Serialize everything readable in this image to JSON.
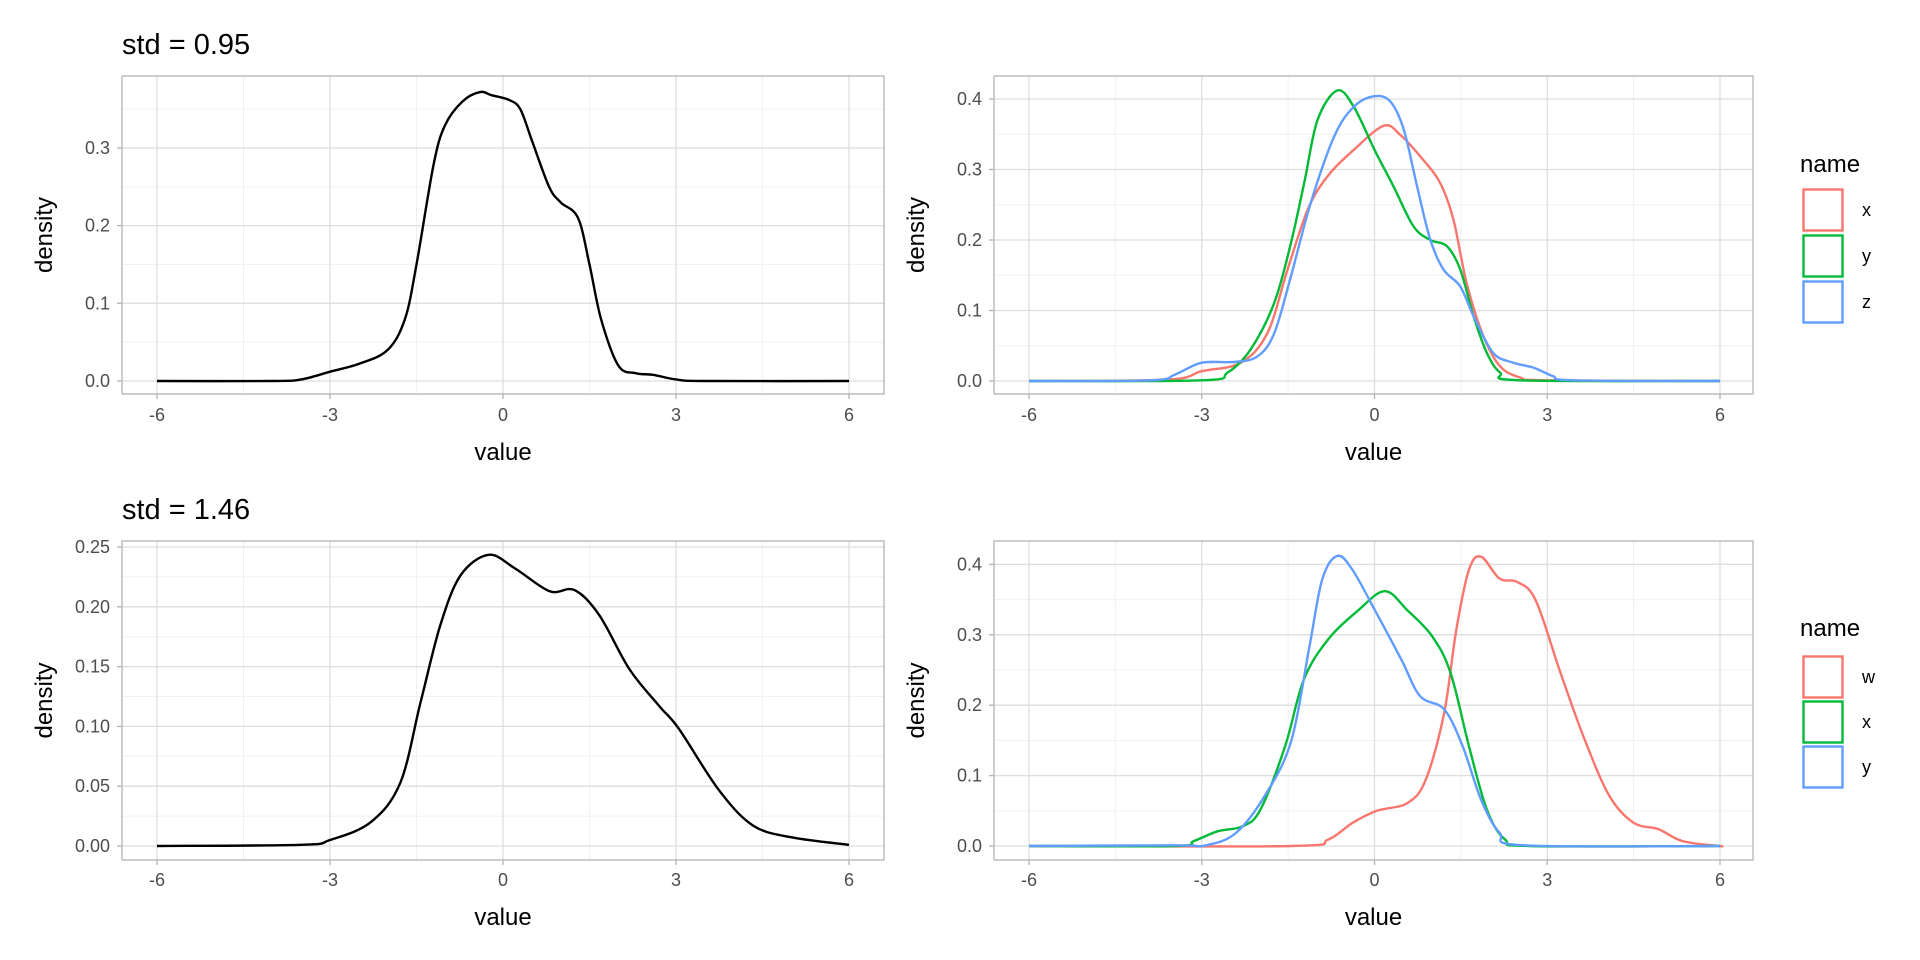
{
  "chart_data": [
    {
      "type": "line",
      "title": "std = 0.95",
      "xlabel": "value",
      "ylabel": "density",
      "xlim": [
        -6,
        6
      ],
      "ylim": [
        0,
        0.372
      ],
      "grid": true,
      "xticks": [
        -6,
        -3,
        0,
        3,
        6
      ],
      "xtick_labels": [
        "-6",
        "-3",
        "0",
        "3",
        "6"
      ],
      "yticks": [
        0,
        0.1,
        0.2,
        0.3
      ],
      "ytick_labels": [
        "0.0",
        "0.1",
        "0.2",
        "0.3"
      ],
      "series": [
        {
          "color": "#000000",
          "x": [
            -6,
            -4,
            -3.5,
            -3,
            -2.5,
            -2,
            -1.7,
            -1.5,
            -1.2,
            -1,
            -0.7,
            -0.4,
            -0.2,
            0.1,
            0.3,
            0.5,
            0.8,
            1.0,
            1.3,
            1.5,
            1.7,
            2,
            2.3,
            2.6,
            3,
            3.5,
            6
          ],
          "y": [
            0,
            0,
            0.002,
            0.012,
            0.022,
            0.04,
            0.08,
            0.15,
            0.28,
            0.33,
            0.36,
            0.372,
            0.368,
            0.362,
            0.35,
            0.31,
            0.25,
            0.23,
            0.21,
            0.15,
            0.08,
            0.02,
            0.01,
            0.008,
            0.002,
            0,
            0
          ]
        }
      ]
    },
    {
      "type": "line",
      "title": "",
      "xlabel": "value",
      "ylabel": "density",
      "xlim": [
        -6,
        6
      ],
      "ylim": [
        0,
        0.412
      ],
      "grid": true,
      "xticks": [
        -6,
        -3,
        0,
        3,
        6
      ],
      "xtick_labels": [
        "-6",
        "-3",
        "0",
        "3",
        "6"
      ],
      "yticks": [
        0,
        0.1,
        0.2,
        0.3,
        0.4
      ],
      "ytick_labels": [
        "0.0",
        "0.1",
        "0.2",
        "0.3",
        "0.4"
      ],
      "legend": {
        "title": "name",
        "placement": "right"
      },
      "series": [
        {
          "name": "x",
          "color": "#F8766D",
          "x": [
            -6,
            -3.59,
            -3,
            -2.32,
            -1.86,
            -1.51,
            -1.16,
            -0.82,
            -0.36,
            0.16,
            0.45,
            0.8,
            1.14,
            1.37,
            1.6,
            1.89,
            2.18,
            2.53,
            2.99,
            6
          ],
          "y": [
            0,
            0.002,
            0.014,
            0.026,
            0.068,
            0.158,
            0.243,
            0.29,
            0.328,
            0.362,
            0.349,
            0.318,
            0.281,
            0.229,
            0.139,
            0.064,
            0.021,
            0.005,
            0.001,
            0
          ]
        },
        {
          "name": "y",
          "color": "#00BA38",
          "x": [
            -6,
            -3,
            -2.55,
            -2.15,
            -1.74,
            -1.45,
            -1.22,
            -0.99,
            -0.65,
            -0.36,
            0,
            0.33,
            0.68,
            0.97,
            1.26,
            1.49,
            1.72,
            1.95,
            2.18,
            2.53,
            6
          ],
          "y": [
            0,
            0.001,
            0.012,
            0.045,
            0.111,
            0.196,
            0.281,
            0.37,
            0.412,
            0.389,
            0.328,
            0.276,
            0.219,
            0.2,
            0.191,
            0.158,
            0.092,
            0.04,
            0.012,
            0.001,
            0
          ]
        },
        {
          "name": "z",
          "color": "#619CFF",
          "x": [
            -6,
            -3.88,
            -3.47,
            -3,
            -2.43,
            -2.03,
            -1.74,
            -1.45,
            -1.11,
            -0.7,
            -0.36,
            0,
            0.28,
            0.51,
            0.74,
            0.97,
            1.2,
            1.49,
            1.72,
            2.06,
            2.41,
            2.76,
            3.1,
            3.45,
            6
          ],
          "y": [
            0,
            0.001,
            0.009,
            0.026,
            0.027,
            0.035,
            0.068,
            0.149,
            0.252,
            0.347,
            0.389,
            0.404,
            0.396,
            0.356,
            0.276,
            0.2,
            0.158,
            0.134,
            0.092,
            0.04,
            0.026,
            0.019,
            0.007,
            0.001,
            0
          ]
        }
      ]
    },
    {
      "type": "line",
      "title": "std = 1.46",
      "xlabel": "value",
      "ylabel": "density",
      "xlim": [
        -6,
        6
      ],
      "ylim": [
        0,
        0.2435
      ],
      "grid": true,
      "xticks": [
        -6,
        -3,
        0,
        3,
        6
      ],
      "xtick_labels": [
        "-6",
        "-3",
        "0",
        "3",
        "6"
      ],
      "yticks": [
        0,
        0.05,
        0.1,
        0.15,
        0.2,
        0.25
      ],
      "ytick_labels": [
        "0.00",
        "0.05",
        "0.10",
        "0.15",
        "0.20",
        "0.25"
      ],
      "series": [
        {
          "color": "#000000",
          "x": [
            -6,
            -3.5,
            -3,
            -2.29,
            -1.78,
            -1.43,
            -1.09,
            -0.74,
            -0.25,
            0.21,
            0.81,
            1.24,
            1.67,
            2.19,
            2.71,
            3.05,
            3.74,
            4.34,
            5.03,
            6
          ],
          "y": [
            0,
            0.001,
            0.005,
            0.02,
            0.053,
            0.12,
            0.184,
            0.226,
            0.2435,
            0.232,
            0.213,
            0.214,
            0.193,
            0.148,
            0.117,
            0.098,
            0.047,
            0.017,
            0.007,
            0.001
          ]
        }
      ]
    },
    {
      "type": "line",
      "title": "",
      "xlabel": "value",
      "ylabel": "density",
      "xlim": [
        -6,
        6
      ],
      "ylim": [
        0,
        0.412
      ],
      "grid": true,
      "xticks": [
        -6,
        -3,
        0,
        3,
        6
      ],
      "xtick_labels": [
        "-6",
        "-3",
        "0",
        "3",
        "6"
      ],
      "yticks": [
        0,
        0.1,
        0.2,
        0.3,
        0.4
      ],
      "ytick_labels": [
        "0.0",
        "0.1",
        "0.2",
        "0.3",
        "0.4"
      ],
      "legend": {
        "title": "name",
        "placement": "right"
      },
      "series": [
        {
          "name": "w",
          "color": "#F8766D",
          "x": [
            -6,
            -1.44,
            -0.81,
            -0.38,
            0.04,
            0.57,
            0.89,
            1.21,
            1.42,
            1.64,
            1.85,
            2.17,
            2.48,
            2.8,
            3.23,
            3.65,
            4.08,
            4.5,
            4.93,
            5.35,
            5.99,
            6
          ],
          "y": [
            0,
            0,
            0.009,
            0.033,
            0.05,
            0.061,
            0.094,
            0.189,
            0.307,
            0.392,
            0.411,
            0.38,
            0.375,
            0.349,
            0.246,
            0.151,
            0.071,
            0.033,
            0.024,
            0.007,
            0,
            0
          ]
        },
        {
          "name": "x",
          "color": "#00BA38",
          "x": [
            -6,
            -3.46,
            -3.14,
            -2.72,
            -2.29,
            -1.98,
            -1.55,
            -1.23,
            -0.81,
            -0.28,
            0.18,
            0.57,
            1.0,
            1.32,
            1.64,
            1.95,
            2.27,
            2.7,
            6
          ],
          "y": [
            0,
            0,
            0.007,
            0.021,
            0.028,
            0.052,
            0.142,
            0.236,
            0.293,
            0.335,
            0.362,
            0.335,
            0.298,
            0.246,
            0.142,
            0.052,
            0.009,
            0,
            0
          ]
        },
        {
          "name": "y",
          "color": "#619CFF",
          "x": [
            -6,
            -3.46,
            -2.93,
            -2.4,
            -1.87,
            -1.44,
            -1.13,
            -0.91,
            -0.65,
            -0.38,
            0.04,
            0.47,
            0.79,
            1.21,
            1.53,
            1.85,
            2.17,
            2.59,
            6
          ],
          "y": [
            0,
            0.001,
            0.001,
            0.019,
            0.076,
            0.151,
            0.283,
            0.378,
            0.412,
            0.392,
            0.33,
            0.264,
            0.213,
            0.194,
            0.142,
            0.066,
            0.019,
            0.001,
            0
          ]
        }
      ]
    }
  ]
}
